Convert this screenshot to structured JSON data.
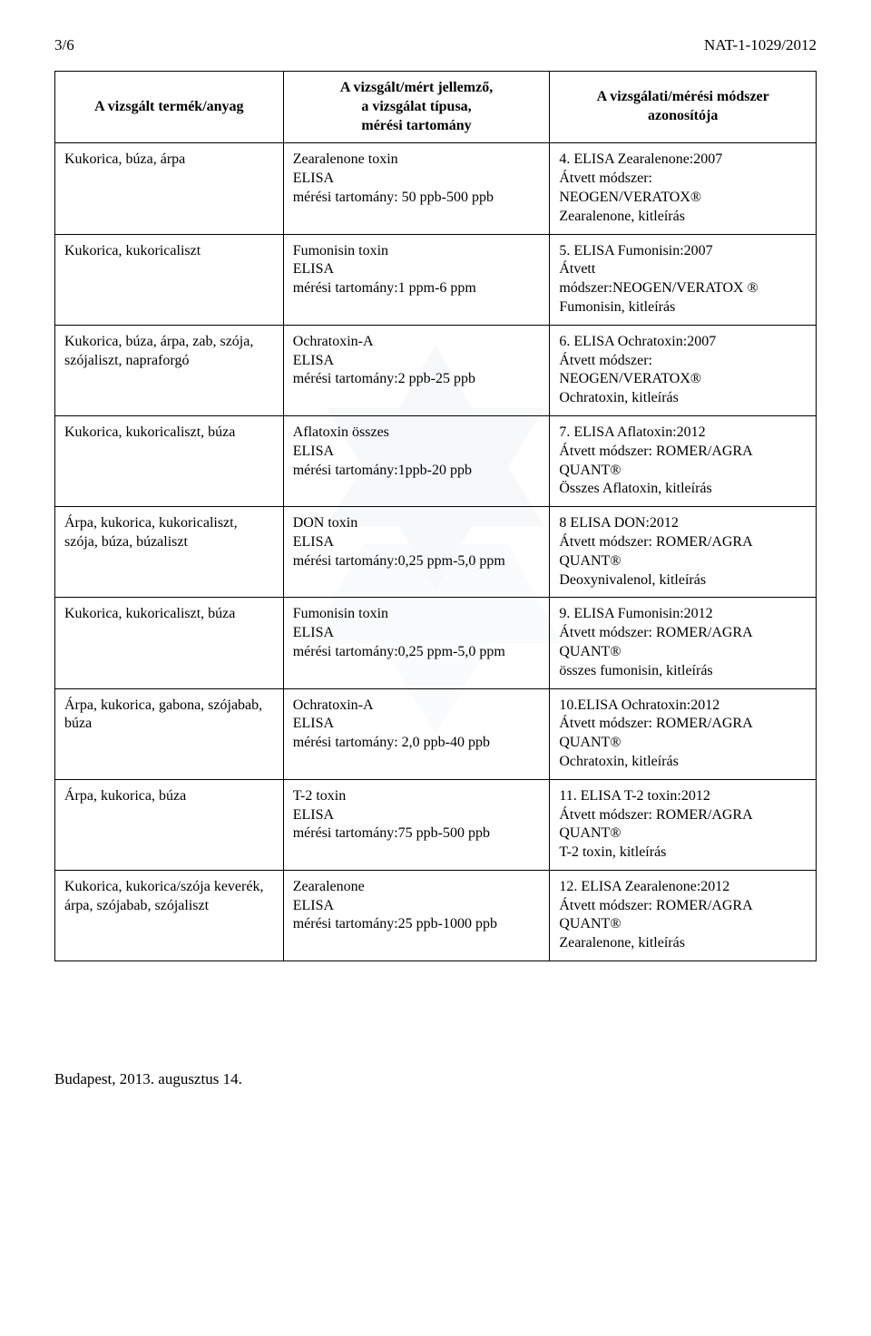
{
  "header": {
    "page_no": "3/6",
    "doc_id": "NAT-1-1029/2012"
  },
  "columns": {
    "c1": "A vizsgált termék/anyag",
    "c2_line1": "A vizsgált/mért jellemző,",
    "c2_line2": "a vizsgálat típusa,",
    "c2_line3": "mérési tartomány",
    "c3_line1": "A vizsgálati/mérési módszer",
    "c3_line2": "azonosítója"
  },
  "rows": [
    {
      "product": "Kukorica, búza, árpa",
      "method": "Zearalenone toxin\nELISA\nmérési tartomány: 50 ppb-500 ppb",
      "id": "4. ELISA Zearalenone:2007\nÁtvett módszer:\nNEOGEN/VERATOX®\nZearalenone, kitleírás"
    },
    {
      "product": "Kukorica, kukoricaliszt",
      "method": "Fumonisin toxin\nELISA\nmérési tartomány:1 ppm-6 ppm",
      "id": "5. ELISA Fumonisin:2007\nÁtvett\nmódszer:NEOGEN/VERATOX ®\nFumonisin, kitleírás"
    },
    {
      "product": "Kukorica, búza, árpa, zab, szója, szójaliszt, napraforgó",
      "method": "Ochratoxin-A\nELISA\nmérési tartomány:2 ppb-25 ppb",
      "id": "6. ELISA Ochratoxin:2007\nÁtvett módszer:\nNEOGEN/VERATOX®\nOchratoxin, kitleírás"
    },
    {
      "product": "Kukorica, kukoricaliszt, búza",
      "method": "Aflatoxin összes\nELISA\nmérési tartomány:1ppb-20 ppb",
      "id": "7. ELISA Aflatoxin:2012\nÁtvett módszer: ROMER/AGRA\nQUANT®\nÖsszes Aflatoxin, kitleírás"
    },
    {
      "product": "Árpa, kukorica, kukoricaliszt, szója, búza, búzaliszt",
      "method": "DON toxin\nELISA\nmérési tartomány:0,25 ppm-5,0 ppm",
      "id": "8 ELISA DON:2012\nÁtvett módszer: ROMER/AGRA\nQUANT®\nDeoxynivalenol, kitleírás"
    },
    {
      "product": "Kukorica, kukoricaliszt, búza",
      "method": "Fumonisin toxin\nELISA\nmérési tartomány:0,25 ppm-5,0 ppm",
      "id": "9. ELISA Fumonisin:2012\nÁtvett módszer: ROMER/AGRA\nQUANT®\nösszes fumonisin, kitleírás"
    },
    {
      "product": "Árpa, kukorica, gabona, szójabab, búza",
      "method": "Ochratoxin-A\nELISA\nmérési tartomány: 2,0 ppb-40 ppb",
      "id": "10.ELISA Ochratoxin:2012\nÁtvett módszer: ROMER/AGRA\nQUANT®\nOchratoxin, kitleírás"
    },
    {
      "product": "Árpa, kukorica, búza",
      "method": "T-2 toxin\nELISA\nmérési tartomány:75 ppb-500 ppb",
      "id": "11. ELISA T-2 toxin:2012\nÁtvett módszer: ROMER/AGRA\nQUANT®\nT-2 toxin, kitleírás"
    },
    {
      "product": "Kukorica, kukorica/szója keverék, árpa, szójabab, szójaliszt",
      "method": "Zearalenone\nELISA\nmérési tartomány:25 ppb-1000 ppb",
      "id": "12. ELISA Zearalenone:2012\nÁtvett módszer: ROMER/AGRA\nQUANT®\nZearalenone, kitleírás"
    }
  ],
  "footer": "Budapest, 2013. augusztus 14.",
  "watermark": {
    "color": "#b8c8d8",
    "size": 520
  }
}
